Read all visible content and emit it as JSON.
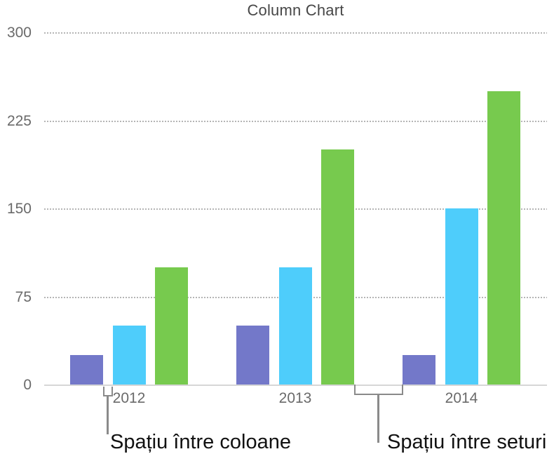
{
  "chart": {
    "title": "Column Chart"
  },
  "chart_data": {
    "type": "bar",
    "title": "Column Chart",
    "categories": [
      "2012",
      "2013",
      "2014"
    ],
    "series": [
      {
        "name": "purple-series",
        "color": "#7378C9",
        "values": [
          25,
          50,
          25
        ]
      },
      {
        "name": "blue-series",
        "color": "#4ECDFB",
        "values": [
          50,
          100,
          150
        ]
      },
      {
        "name": "green-series",
        "color": "#77CA4E",
        "values": [
          100,
          200,
          250
        ]
      }
    ],
    "xlabel": "",
    "ylabel": "",
    "ylim": [
      0,
      300
    ],
    "yticks": [
      0,
      75,
      150,
      225,
      300
    ],
    "grid": "horizontal-dotted",
    "legend": "none"
  },
  "annotations": {
    "column_gap_label": "Spațiu între coloane",
    "set_gap_label": "Spațiu între seturi"
  },
  "colors": {
    "purple": "#7378C9",
    "blue": "#4ECDFB",
    "green": "#77CA4E",
    "gridline": "#b5b5b5",
    "baseline": "#d6d6d6",
    "axis_label": "#6a6a6a",
    "title": "#474747",
    "bracket": "#8a8a8a",
    "annotation_text": "#111111"
  }
}
